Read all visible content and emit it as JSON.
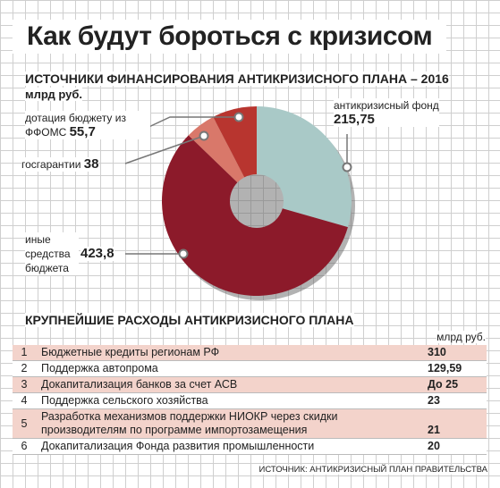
{
  "title": "Как будут бороться с кризисом",
  "chart_data": {
    "type": "pie",
    "title": "ИСТОЧНИКИ ФИНАНСИРОВАНИЯ АНТИКРИЗИСНОГО ПЛАНА – 2016",
    "subtitle": "млрд руб.",
    "categories": [
      "антикризисный фонд",
      "иные средства бюджета",
      "госгарантии",
      "дотация бюджету из ФФОМС"
    ],
    "values": [
      215.75,
      423.8,
      38,
      55.7
    ],
    "value_labels": [
      "215,75",
      "423,8",
      "38",
      "55,7"
    ],
    "colors": [
      "#a9c9c7",
      "#8c1a2a",
      "#d9786a",
      "#b8352f"
    ]
  },
  "table": {
    "title": "КРУПНЕЙШИЕ РАСХОДЫ АНТИКРИЗИСНОГО ПЛАНА",
    "unit": "млрд руб.",
    "rows": [
      [
        "1",
        "Бюджетные кредиты регионам РФ",
        "310"
      ],
      [
        "2",
        "Поддержка автопрома",
        "129,59"
      ],
      [
        "3",
        "Докапитализация банков за счет АСВ",
        "До 25"
      ],
      [
        "4",
        "Поддержка сельского хозяйства",
        "23"
      ],
      [
        "5",
        "Разработка механизмов поддержки НИОКР через скидки производителям по программе импортозамещения",
        "21"
      ],
      [
        "6",
        "Докапитализация Фонда развития промышленности",
        "20"
      ]
    ]
  },
  "source": "ИСТОЧНИК: АНТИКРИЗИСНЫЙ ПЛАН ПРАВИТЕЛЬСТВА"
}
